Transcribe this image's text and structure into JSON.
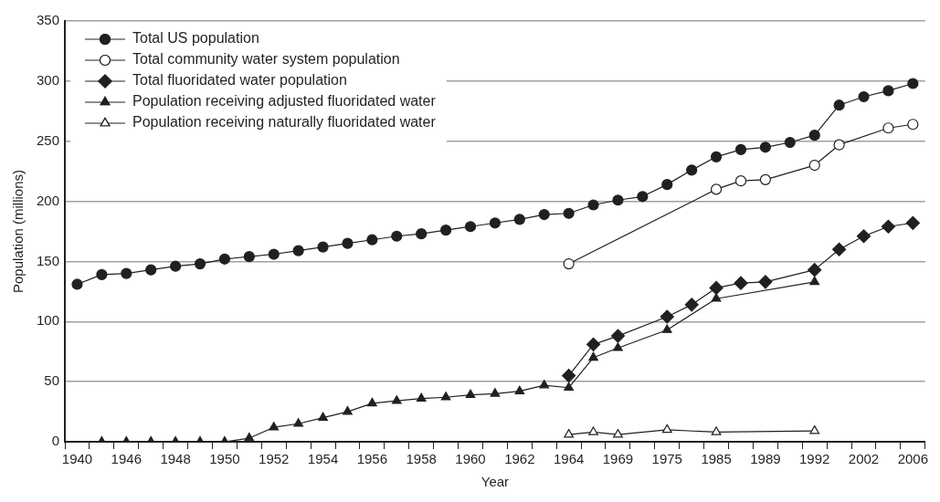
{
  "chart_data": {
    "type": "line",
    "xlabel": "Year",
    "ylabel": "Population (millions)",
    "categories": [
      "1940",
      null,
      "1946",
      null,
      "1948",
      null,
      "1950",
      null,
      "1952",
      null,
      "1954",
      null,
      "1956",
      null,
      "1958",
      null,
      "1960",
      null,
      "1962",
      null,
      "1964",
      null,
      "1969",
      null,
      "1975",
      null,
      "1985",
      null,
      "1989",
      null,
      "1992",
      null,
      "2002",
      null,
      "2006"
    ],
    "ylim": [
      0,
      350
    ],
    "yticks": [
      0,
      50,
      100,
      150,
      200,
      250,
      300,
      350
    ],
    "grid": "y",
    "legend": "top left",
    "series": [
      {
        "name": "Total US population",
        "color": "#231f20",
        "marker": "circle",
        "values": [
          131,
          139,
          140,
          143,
          146,
          148,
          152,
          154,
          156,
          159,
          162,
          165,
          168,
          171,
          173,
          176,
          179,
          182,
          185,
          189,
          190,
          197,
          201,
          204,
          214,
          226,
          237,
          243,
          245,
          249,
          255,
          280,
          287,
          292,
          298
        ]
      },
      {
        "name": "Total community water system population",
        "color": "#231f20",
        "marker": "circle",
        "values": [
          null,
          null,
          null,
          null,
          null,
          null,
          null,
          null,
          null,
          null,
          null,
          null,
          null,
          null,
          null,
          null,
          null,
          null,
          null,
          null,
          148,
          null,
          null,
          null,
          null,
          null,
          210,
          217,
          218,
          null,
          230,
          247,
          null,
          261,
          264
        ]
      },
      {
        "name": "Total fluoridated water population",
        "color": "#231f20",
        "marker": "diamond",
        "values": [
          null,
          null,
          null,
          null,
          null,
          null,
          null,
          null,
          null,
          null,
          null,
          null,
          null,
          null,
          null,
          null,
          null,
          null,
          null,
          null,
          55,
          81,
          88,
          null,
          104,
          114,
          128,
          132,
          133,
          null,
          143,
          160,
          171,
          179,
          182
        ]
      },
      {
        "name": "Population receiving adjusted fluoridated water",
        "color": "#231f20",
        "marker": "triangle",
        "values": [
          null,
          0,
          0,
          0,
          0,
          0,
          0,
          3,
          12,
          15,
          20,
          25,
          32,
          34,
          36,
          37,
          39,
          40,
          42,
          47,
          45,
          70,
          78,
          null,
          93,
          null,
          119,
          null,
          null,
          null,
          133,
          null,
          null,
          null,
          null
        ]
      },
      {
        "name": "Population receiving naturally fluoridated water",
        "color": "#231f20",
        "marker": "triangle",
        "values": [
          null,
          null,
          null,
          null,
          null,
          null,
          null,
          null,
          null,
          null,
          null,
          null,
          null,
          null,
          null,
          null,
          null,
          null,
          null,
          null,
          6,
          8,
          6,
          null,
          10,
          null,
          8,
          null,
          null,
          null,
          9,
          null,
          null,
          null,
          null
        ]
      }
    ]
  }
}
